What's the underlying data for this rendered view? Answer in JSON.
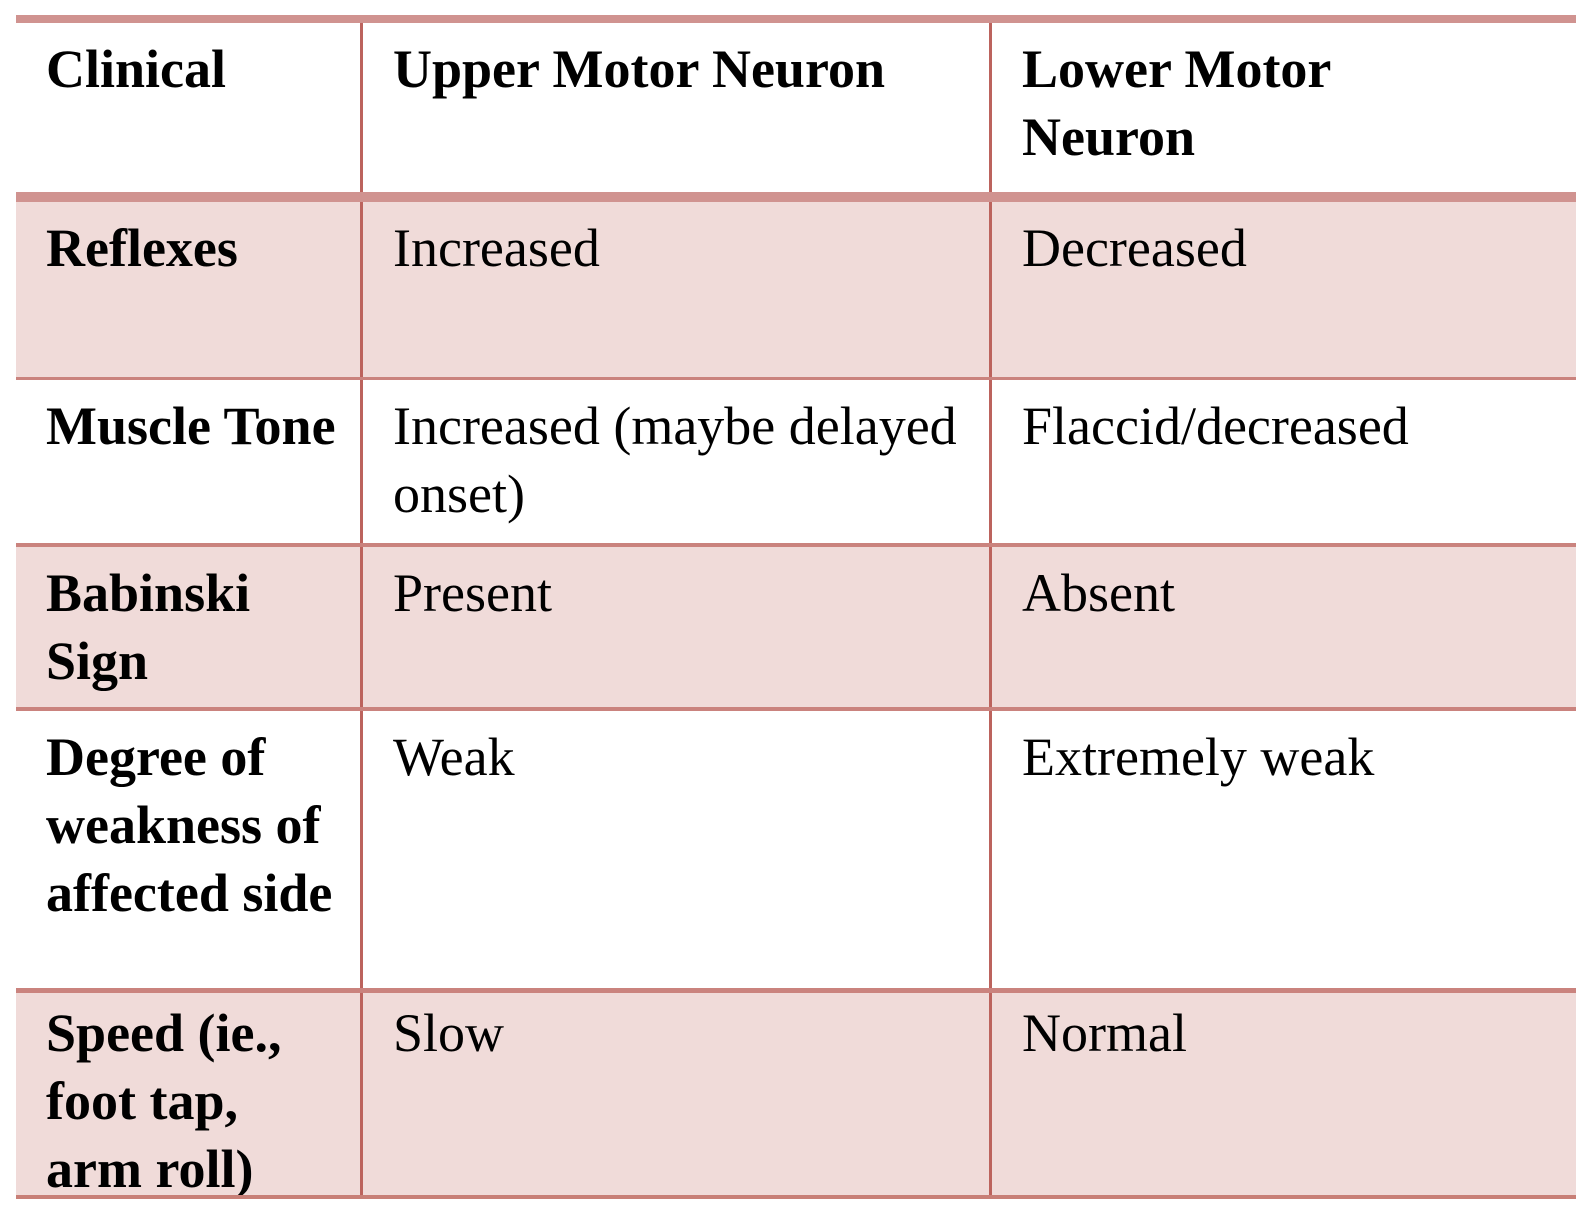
{
  "table": {
    "title_semantics": "Upper vs Lower Motor Neuron clinical comparison table",
    "columns": {
      "clinical": "Clinical",
      "umn": "Upper Motor Neuron",
      "lmn": "Lower Motor\nNeuron"
    },
    "rows": [
      {
        "label": "Reflexes",
        "umn": "Increased",
        "lmn": "Decreased"
      },
      {
        "label": "Muscle Tone",
        "umn": "Increased (maybe delayed onset)",
        "lmn": "Flaccid/decreased"
      },
      {
        "label": "Babinski Sign",
        "umn": "Present",
        "lmn": "Absent"
      },
      {
        "label": "Degree of weakness of affected side",
        "umn": "Weak",
        "lmn": "Extremely weak"
      },
      {
        "label": "Speed (ie., foot tap, arm roll)",
        "umn": "Slow",
        "lmn": "Normal"
      }
    ],
    "colors": {
      "accent_band": "#d09390",
      "pink_row_fill": "#f0dbd9",
      "white_row_fill": "#ffffff",
      "vertical_divider": "#bc635d",
      "horizontal_divider": "#ca837e",
      "text": "#000000"
    }
  }
}
